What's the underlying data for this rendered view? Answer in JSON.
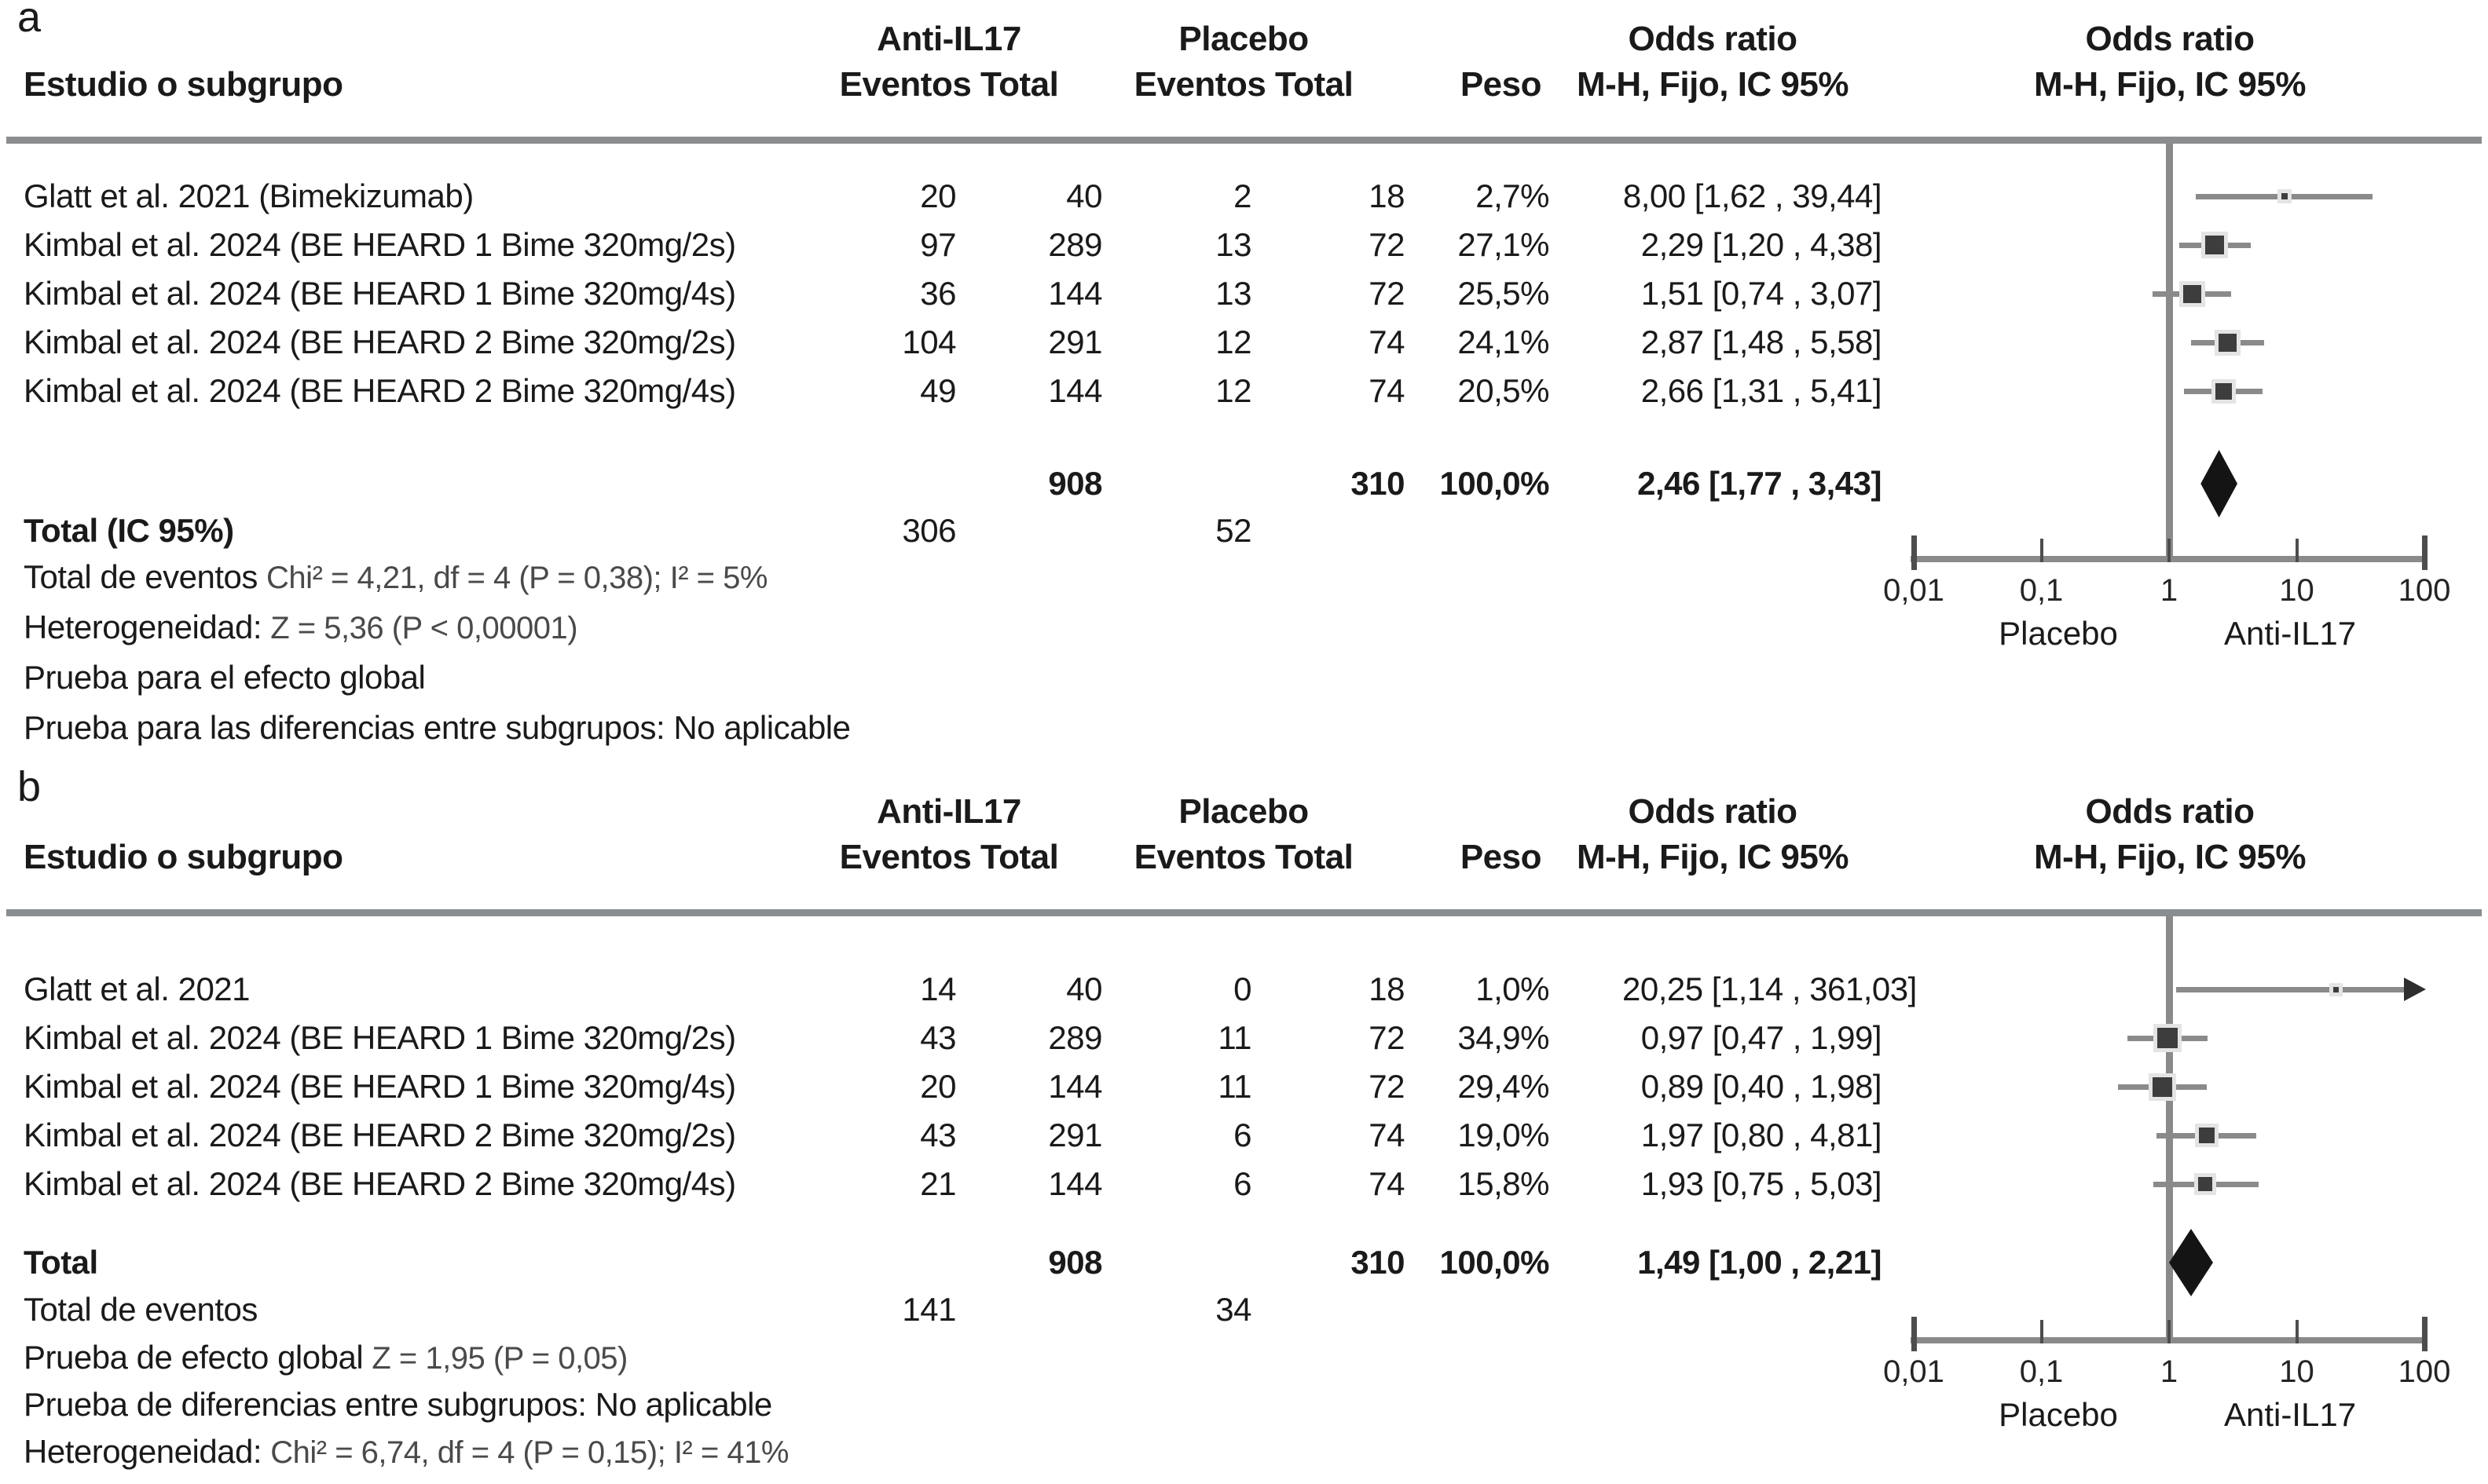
{
  "chart_data": [
    {
      "type": "forest",
      "panel": "a",
      "columns": {
        "study": "Estudio o subgrupo",
        "group1": "Anti-IL17",
        "group2": "Placebo",
        "events_total": "Eventos Total",
        "weight": "Peso",
        "or_title": "Odds ratio",
        "or_sub": "M-H, Fijo, IC 95%"
      },
      "studies": [
        {
          "study": "Glatt et al. 2021 (Bimekizumab)",
          "events1": "20",
          "total1": "40",
          "events2": "2",
          "total2": "18",
          "weight": "2,7%",
          "or_text": "8,00 [1,62 , 39,44]",
          "or": 8.0,
          "ci_low": 1.62,
          "ci_high": 39.44,
          "weight_pct": 2.7
        },
        {
          "study": "Kimbal et al. 2024 (BE HEARD 1 Bime 320mg/2s)",
          "events1": "97",
          "total1": "289",
          "events2": "13",
          "total2": "72",
          "weight": "27,1%",
          "or_text": "2,29 [1,20 , 4,38]",
          "or": 2.29,
          "ci_low": 1.2,
          "ci_high": 4.38,
          "weight_pct": 27.1
        },
        {
          "study": "Kimbal et al. 2024 (BE HEARD 1 Bime 320mg/4s)",
          "events1": "36",
          "total1": "144",
          "events2": "13",
          "total2": "72",
          "weight": "25,5%",
          "or_text": "1,51 [0,74 , 3,07]",
          "or": 1.51,
          "ci_low": 0.74,
          "ci_high": 3.07,
          "weight_pct": 25.5
        },
        {
          "study": "Kimbal et al. 2024 (BE HEARD 2 Bime 320mg/2s)",
          "events1": "104",
          "total1": "291",
          "events2": "12",
          "total2": "74",
          "weight": "24,1%",
          "or_text": "2,87 [1,48 , 5,58]",
          "or": 2.87,
          "ci_low": 1.48,
          "ci_high": 5.58,
          "weight_pct": 24.1
        },
        {
          "study": "Kimbal et al. 2024 (BE HEARD 2 Bime 320mg/4s)",
          "events1": "49",
          "total1": "144",
          "events2": "12",
          "total2": "74",
          "weight": "20,5%",
          "or_text": "2,66 [1,31 , 5,41]",
          "or": 2.66,
          "ci_low": 1.31,
          "ci_high": 5.41,
          "weight_pct": 20.5
        }
      ],
      "total": {
        "row1_label": "",
        "total1": "908",
        "total2": "310",
        "weight": "100,0%",
        "or_text": "2,46 [1,77 , 3,43]",
        "row2_label": "Total (IC 95%)",
        "events1": "306",
        "events2": "52",
        "or": 2.46,
        "ci_low": 1.77,
        "ci_high": 3.43
      },
      "stats": [
        {
          "label": "Total de eventos ",
          "value": "Chi² = 4,21, df = 4 (P = 0,38); I² = 5%"
        },
        {
          "label": "Heterogeneidad: ",
          "value": "Z = 5,36 (P < 0,00001)"
        },
        {
          "label": "Prueba para el efecto global",
          "value": ""
        },
        {
          "label": "Prueba para las diferencias entre subgrupos: No aplicable",
          "value": ""
        }
      ],
      "axis": {
        "scale": "log",
        "min": 0.01,
        "max": 100,
        "ticks": [
          0.01,
          0.1,
          1,
          10,
          100
        ],
        "tick_labels": [
          "0,01",
          "0,1",
          "1",
          "10",
          "100"
        ],
        "left_label": "Placebo",
        "right_label": "Anti-IL17"
      }
    },
    {
      "type": "forest",
      "panel": "b",
      "columns": {
        "study": "Estudio o subgrupo",
        "group1": "Anti-IL17",
        "group2": "Placebo",
        "events_total": "Eventos Total",
        "weight": "Peso",
        "or_title": "Odds ratio",
        "or_sub": "M-H, Fijo, IC 95%"
      },
      "studies": [
        {
          "study": "Glatt et al. 2021",
          "events1": "14",
          "total1": "40",
          "events2": "0",
          "total2": "18",
          "weight": "1,0%",
          "or_text": "20,25 [1,14 , 361,03]",
          "or": 20.25,
          "ci_low": 1.14,
          "ci_high": 361.03,
          "weight_pct": 1.0
        },
        {
          "study": "Kimbal et al. 2024 (BE HEARD 1 Bime 320mg/2s)",
          "events1": "43",
          "total1": "289",
          "events2": "11",
          "total2": "72",
          "weight": "34,9%",
          "or_text": "0,97 [0,47 , 1,99]",
          "or": 0.97,
          "ci_low": 0.47,
          "ci_high": 1.99,
          "weight_pct": 34.9
        },
        {
          "study": "Kimbal et al. 2024 (BE HEARD 1 Bime 320mg/4s)",
          "events1": "20",
          "total1": "144",
          "events2": "11",
          "total2": "72",
          "weight": "29,4%",
          "or_text": "0,89 [0,40 , 1,98]",
          "or": 0.89,
          "ci_low": 0.4,
          "ci_high": 1.98,
          "weight_pct": 29.4
        },
        {
          "study": "Kimbal et al. 2024 (BE HEARD 2 Bime 320mg/2s)",
          "events1": "43",
          "total1": "291",
          "events2": "6",
          "total2": "74",
          "weight": "19,0%",
          "or_text": "1,97 [0,80 , 4,81]",
          "or": 1.97,
          "ci_low": 0.8,
          "ci_high": 4.81,
          "weight_pct": 19.0
        },
        {
          "study": "Kimbal et al. 2024 (BE HEARD 2 Bime 320mg/4s)",
          "events1": "21",
          "total1": "144",
          "events2": "6",
          "total2": "74",
          "weight": "15,8%",
          "or_text": "1,93 [0,75 , 5,03]",
          "or": 1.93,
          "ci_low": 0.75,
          "ci_high": 5.03,
          "weight_pct": 15.8
        }
      ],
      "total": {
        "row1_label": "Total",
        "total1": "908",
        "total2": "310",
        "weight": "100,0%",
        "or_text": "1,49 [1,00 , 2,21]",
        "row2_label": "Total de eventos",
        "events1": "141",
        "events2": "34",
        "or": 1.49,
        "ci_low": 1.0,
        "ci_high": 2.21
      },
      "stats": [
        {
          "label": "Prueba de efecto global ",
          "value": "Z = 1,95 (P = 0,05)"
        },
        {
          "label": "Prueba de diferencias entre subgrupos: No aplicable",
          "value": ""
        },
        {
          "label": "Heterogeneidad: ",
          "value": "Chi² = 6,74, df = 4 (P = 0,15); I² = 41%"
        }
      ],
      "axis": {
        "scale": "log",
        "min": 0.01,
        "max": 100,
        "ticks": [
          0.01,
          0.1,
          1,
          10,
          100
        ],
        "tick_labels": [
          "0,01",
          "0,1",
          "1",
          "10",
          "100"
        ],
        "left_label": "Placebo",
        "right_label": "Anti-IL17"
      }
    }
  ]
}
